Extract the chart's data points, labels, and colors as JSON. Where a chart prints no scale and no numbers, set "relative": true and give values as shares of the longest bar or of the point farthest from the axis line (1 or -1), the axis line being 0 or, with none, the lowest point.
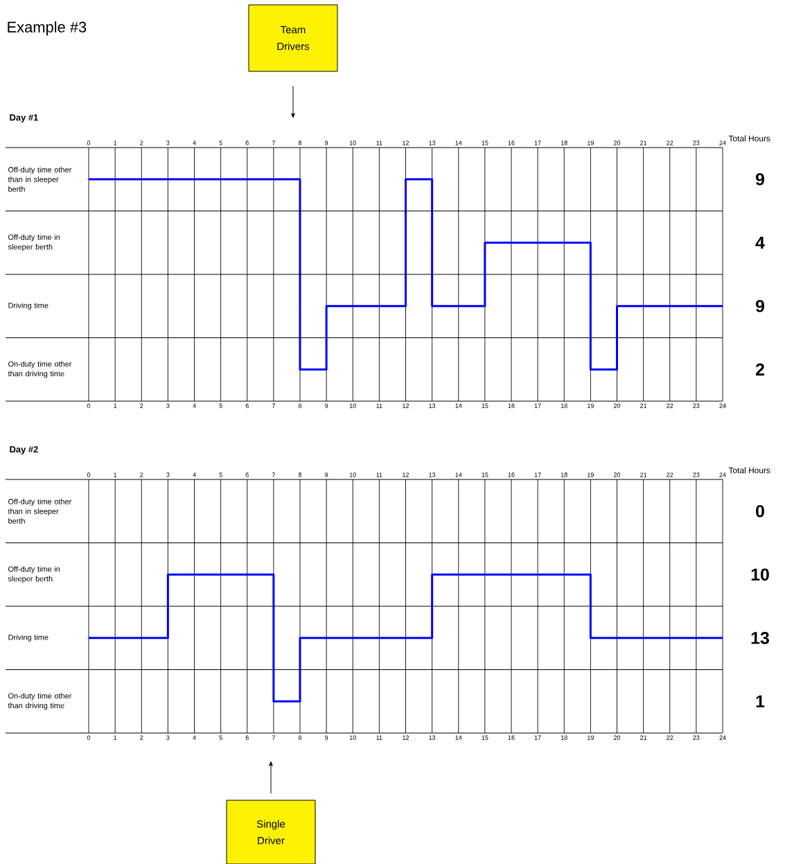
{
  "chart_data": [
    {
      "type": "line",
      "title": "Day #1",
      "color": "#0000ff",
      "relative": true,
      "annotations": [
        "Example #3",
        "Team Drivers",
        "Total Hours",
        "Off-duty time other than in sleeper berth",
        "Off-duty time in sleeper berth",
        "Driving time",
        "On-duty time other than driving time",
        "9",
        "4",
        "9",
        "2"
      ],
      "x": [
        0,
        8,
        8,
        9,
        9,
        12,
        12,
        13,
        13,
        15,
        15,
        19,
        19,
        20,
        20,
        24
      ],
      "values": [
        1,
        1,
        0.1429,
        0.1429,
        0.4286,
        0.4286,
        1,
        1,
        0.4286,
        0.4286,
        0.7143,
        0.7143,
        0.1429,
        0.1429,
        0.4286,
        0.4286
      ],
      "xlim": [
        0,
        24
      ],
      "xticks": [
        0,
        1,
        2,
        3,
        4,
        5,
        6,
        7,
        8,
        9,
        10,
        11,
        12,
        13,
        14,
        15,
        16,
        17,
        18,
        19,
        20,
        21,
        22,
        23,
        24
      ],
      "x2lim": [
        0,
        24
      ],
      "x2ticks": [
        0,
        1,
        2,
        3,
        4,
        5,
        6,
        7,
        8,
        9,
        10,
        11,
        12,
        13,
        14,
        15,
        16,
        17,
        18,
        19,
        20,
        21,
        22,
        23,
        24
      ],
      "grid": "x"
    },
    {
      "type": "line",
      "title": "Day #2",
      "color": "#0000ff",
      "relative": true,
      "annotations": [
        "Single Driver",
        "Total Hours",
        "Off-duty time other than in sleeper berth",
        "Off-duty time in sleeper berth",
        "Driving time",
        "On-duty time other than driving time",
        "0",
        "10",
        "13",
        "1"
      ],
      "x": [
        0,
        3,
        3,
        7,
        7,
        8,
        8,
        13,
        13,
        19,
        19,
        24
      ],
      "values": [
        0.6,
        0.6,
        1,
        1,
        0.2,
        0.2,
        0.6,
        0.6,
        1,
        1,
        0.6,
        0.6
      ],
      "xlim": [
        0,
        24
      ],
      "xticks": [
        0,
        1,
        2,
        3,
        4,
        5,
        6,
        7,
        8,
        9,
        10,
        11,
        12,
        13,
        14,
        15,
        16,
        17,
        18,
        19,
        20,
        21,
        22,
        23,
        24
      ],
      "x2lim": [
        0,
        24
      ],
      "x2ticks": [
        0,
        1,
        2,
        3,
        4,
        5,
        6,
        7,
        8,
        9,
        10,
        11,
        12,
        13,
        14,
        15,
        16,
        17,
        18,
        19,
        20,
        21,
        22,
        23,
        24
      ],
      "grid": "x"
    }
  ]
}
